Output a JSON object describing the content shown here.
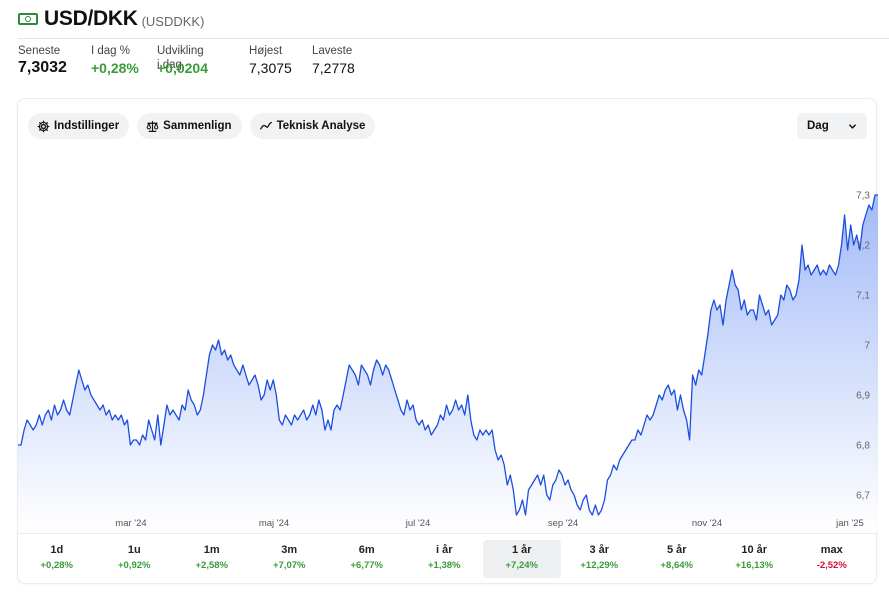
{
  "header": {
    "icon": "banknote-icon",
    "title": "USD/DKK",
    "ticker": "(USDDKK)"
  },
  "stats": [
    {
      "label": "Seneste",
      "value": "7,3032",
      "style": "big"
    },
    {
      "label": "I dag %",
      "value": "+0,28%",
      "style": "pos"
    },
    {
      "label": "Udvikling i dag",
      "value": "+0,0204",
      "style": "pos"
    },
    {
      "label": "Højest",
      "value": "7,3075",
      "style": "plain"
    },
    {
      "label": "Laveste",
      "value": "7,2778",
      "style": "plain"
    }
  ],
  "toolbar": {
    "settings_label": "Indstillinger",
    "compare_label": "Sammenlign",
    "technical_label": "Teknisk Analyse",
    "interval_value": "Dag"
  },
  "ranges": [
    {
      "label": "1d",
      "change": "+0,28%",
      "sign": "pos",
      "active": false
    },
    {
      "label": "1u",
      "change": "+0,92%",
      "sign": "pos",
      "active": false
    },
    {
      "label": "1m",
      "change": "+2,58%",
      "sign": "pos",
      "active": false
    },
    {
      "label": "3m",
      "change": "+7,07%",
      "sign": "pos",
      "active": false
    },
    {
      "label": "6m",
      "change": "+6,77%",
      "sign": "pos",
      "active": false
    },
    {
      "label": "i år",
      "change": "+1,38%",
      "sign": "pos",
      "active": false
    },
    {
      "label": "1 år",
      "change": "+7,24%",
      "sign": "pos",
      "active": true
    },
    {
      "label": "3 år",
      "change": "+12,29%",
      "sign": "pos",
      "active": false
    },
    {
      "label": "5 år",
      "change": "+8,64%",
      "sign": "pos",
      "active": false
    },
    {
      "label": "10 år",
      "change": "+16,13%",
      "sign": "pos",
      "active": false
    },
    {
      "label": "max",
      "change": "-2,52%",
      "sign": "neg",
      "active": false
    }
  ],
  "chart_data": {
    "type": "area",
    "color": "#1c4fe0",
    "x_tick_labels": [
      "mar '24",
      "maj '24",
      "jul '24",
      "sep '24",
      "nov '24",
      "jan '25"
    ],
    "y_tick_labels": [
      "6,7",
      "6,8",
      "6,9",
      "7",
      "7,1",
      "7,2",
      "7,3"
    ],
    "y_ticks": [
      6.7,
      6.8,
      6.9,
      7.0,
      7.1,
      7.2,
      7.3
    ],
    "ylim": [
      6.656,
      7.332
    ],
    "grid": false,
    "series": [
      {
        "values": [
          6.8,
          6.8,
          6.83,
          6.85,
          6.84,
          6.83,
          6.84,
          6.86,
          6.84,
          6.86,
          6.87,
          6.85,
          6.88,
          6.86,
          6.87,
          6.89,
          6.87,
          6.86,
          6.89,
          6.92,
          6.95,
          6.93,
          6.91,
          6.92,
          6.9,
          6.89,
          6.88,
          6.87,
          6.88,
          6.86,
          6.87,
          6.85,
          6.86,
          6.85,
          6.86,
          6.84,
          6.85,
          6.8,
          6.81,
          6.81,
          6.8,
          6.82,
          6.81,
          6.85,
          6.83,
          6.81,
          6.86,
          6.8,
          6.84,
          6.88,
          6.86,
          6.87,
          6.86,
          6.85,
          6.88,
          6.87,
          6.91,
          6.89,
          6.88,
          6.86,
          6.87,
          6.9,
          6.94,
          6.98,
          7.0,
          6.99,
          7.01,
          6.98,
          6.99,
          6.97,
          6.98,
          6.96,
          6.95,
          6.94,
          6.96,
          6.94,
          6.92,
          6.93,
          6.94,
          6.92,
          6.89,
          6.9,
          6.93,
          6.91,
          6.93,
          6.9,
          6.85,
          6.84,
          6.86,
          6.85,
          6.84,
          6.86,
          6.85,
          6.86,
          6.87,
          6.85,
          6.86,
          6.88,
          6.86,
          6.89,
          6.87,
          6.83,
          6.85,
          6.83,
          6.87,
          6.88,
          6.87,
          6.9,
          6.93,
          6.96,
          6.95,
          6.94,
          6.92,
          6.96,
          6.95,
          6.94,
          6.92,
          6.95,
          6.97,
          6.96,
          6.94,
          6.96,
          6.95,
          6.93,
          6.91,
          6.89,
          6.87,
          6.86,
          6.89,
          6.87,
          6.88,
          6.85,
          6.84,
          6.85,
          6.83,
          6.84,
          6.82,
          6.83,
          6.84,
          6.86,
          6.85,
          6.88,
          6.86,
          6.87,
          6.89,
          6.87,
          6.88,
          6.86,
          6.9,
          6.85,
          6.82,
          6.81,
          6.83,
          6.82,
          6.83,
          6.82,
          6.83,
          6.79,
          6.77,
          6.78,
          6.76,
          6.72,
          6.74,
          6.71,
          6.66,
          6.67,
          6.69,
          6.66,
          6.71,
          6.72,
          6.73,
          6.74,
          6.72,
          6.74,
          6.7,
          6.69,
          6.72,
          6.73,
          6.75,
          6.74,
          6.72,
          6.73,
          6.71,
          6.7,
          6.68,
          6.67,
          6.69,
          6.7,
          6.67,
          6.66,
          6.68,
          6.66,
          6.67,
          6.69,
          6.73,
          6.74,
          6.76,
          6.75,
          6.77,
          6.78,
          6.79,
          6.8,
          6.81,
          6.81,
          6.83,
          6.82,
          6.84,
          6.86,
          6.85,
          6.86,
          6.88,
          6.9,
          6.89,
          6.91,
          6.92,
          6.9,
          6.91,
          6.87,
          6.9,
          6.87,
          6.85,
          6.81,
          6.94,
          6.92,
          6.95,
          6.94,
          6.98,
          7.02,
          7.07,
          7.09,
          7.07,
          7.08,
          7.04,
          7.09,
          7.12,
          7.15,
          7.12,
          7.11,
          7.07,
          7.09,
          7.06,
          7.07,
          7.07,
          7.05,
          7.1,
          7.08,
          7.06,
          7.07,
          7.04,
          7.05,
          7.06,
          7.1,
          7.09,
          7.12,
          7.11,
          7.09,
          7.1,
          7.13,
          7.2,
          7.15,
          7.16,
          7.14,
          7.15,
          7.16,
          7.14,
          7.15,
          7.14,
          7.16,
          7.15,
          7.14,
          7.16,
          7.2,
          7.26,
          7.19,
          7.24,
          7.2,
          7.22,
          7.19,
          7.24,
          7.26,
          7.28,
          7.27,
          7.3,
          7.3
        ]
      }
    ]
  }
}
